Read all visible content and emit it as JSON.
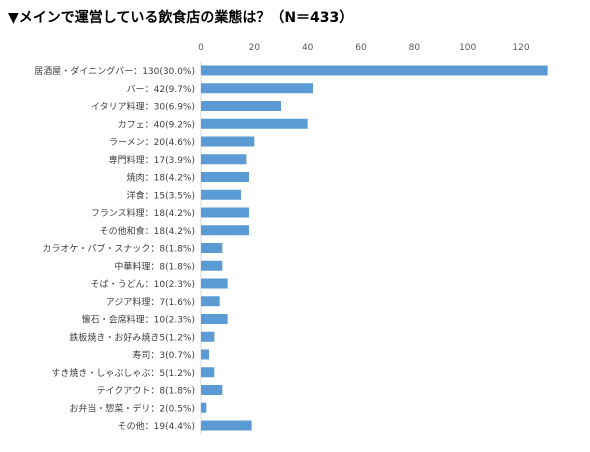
{
  "chart_data": {
    "type": "bar",
    "orientation": "horizontal",
    "title": "▼メインで運営している飲食店の業態は？（N＝433）",
    "categories": [
      "居酒屋・ダイニングバー：130(30.0%)",
      "バー：42(9.7%)",
      "イタリア料理：30(6.9%)",
      "カフェ：40(9.2%)",
      "ラーメン：20(4.6%)",
      "専門料理：17(3.9%)",
      "焼肉：18(4.2%)",
      "洋食：15(3.5%)",
      "フランス料理：18(4.2%)",
      "その他和食：18(4.2%)",
      "カラオケ・パブ・スナック：8(1.8%)",
      "中華料理：8(1.8%)",
      "そば・うどん：10(2.3%)",
      "アジア料理：7(1.6%)",
      "懐石・会席料理：10(2.3%)",
      "鉄板焼き・お好み焼き5(1.2%)",
      "寿司：3(0.7%)",
      "すき焼き・しゃぶしゃぶ：5(1.2%)",
      "テイクアウト：8(1.8%)",
      "お弁当・惣菜・デリ：2(0.5%)",
      "その他：19(4.4%)"
    ],
    "values": [
      130,
      42,
      30,
      40,
      20,
      17,
      18,
      15,
      18,
      18,
      8,
      8,
      10,
      7,
      10,
      5,
      3,
      5,
      8,
      2,
      19
    ],
    "xlim": [
      0,
      120
    ],
    "xticks": [
      0,
      20,
      40,
      60,
      80,
      100,
      120
    ],
    "axis_position": "top",
    "grid": false,
    "legend": "none",
    "bar_color": "#5B9BD5"
  }
}
